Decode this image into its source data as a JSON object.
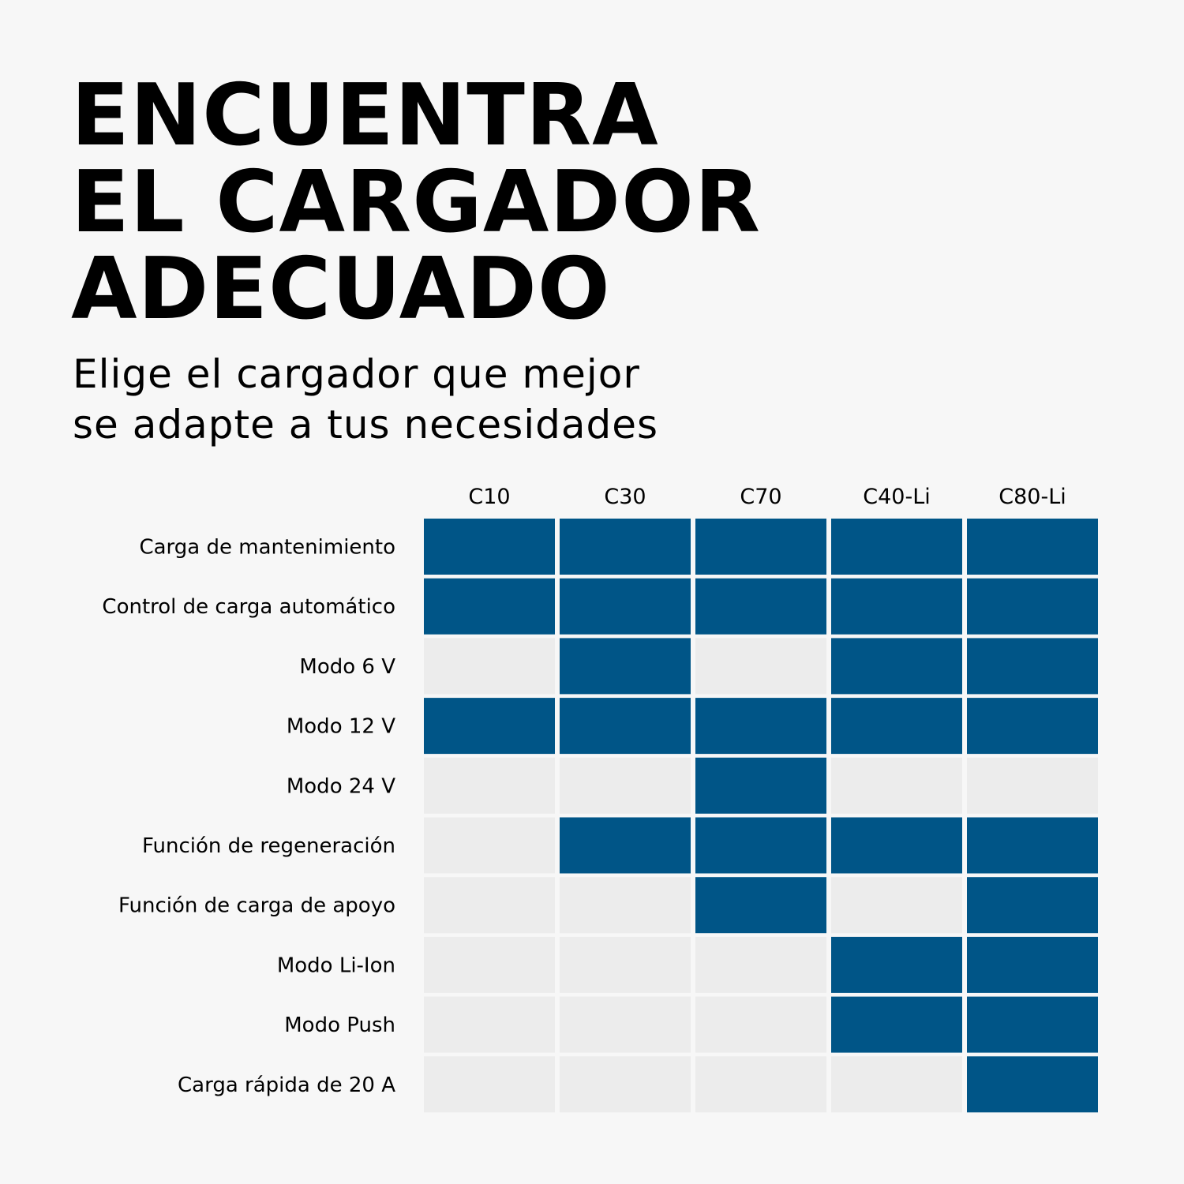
{
  "headline": {
    "line1": "ENCUENTRA",
    "line2": "EL CARGADOR",
    "line3": "ADECUADO"
  },
  "subtitle": {
    "line1": "Elige el cargador que mejor",
    "line2": "se adapte a tus necesidades"
  },
  "colors": {
    "background": "#f7f7f7",
    "filled": "#005587",
    "empty": "#ececec"
  },
  "chart_data": {
    "type": "table",
    "columns": [
      "C10",
      "C30",
      "C70",
      "C40-Li",
      "C80-Li"
    ],
    "rows": [
      "Carga de mantenimiento",
      "Control de carga automático",
      "Modo 6 V",
      "Modo 12 V",
      "Modo 24 V",
      "Función de regeneración",
      "Función de carga de apoyo",
      "Modo Li-Ion",
      "Modo Push",
      "Carga rápida de 20 A"
    ],
    "values": [
      [
        1,
        1,
        1,
        1,
        1
      ],
      [
        1,
        1,
        1,
        1,
        1
      ],
      [
        0,
        1,
        0,
        1,
        1
      ],
      [
        1,
        1,
        1,
        1,
        1
      ],
      [
        0,
        0,
        1,
        0,
        0
      ],
      [
        0,
        1,
        1,
        1,
        1
      ],
      [
        0,
        0,
        1,
        0,
        1
      ],
      [
        0,
        0,
        0,
        1,
        1
      ],
      [
        0,
        0,
        0,
        1,
        1
      ],
      [
        0,
        0,
        0,
        0,
        1
      ]
    ]
  }
}
